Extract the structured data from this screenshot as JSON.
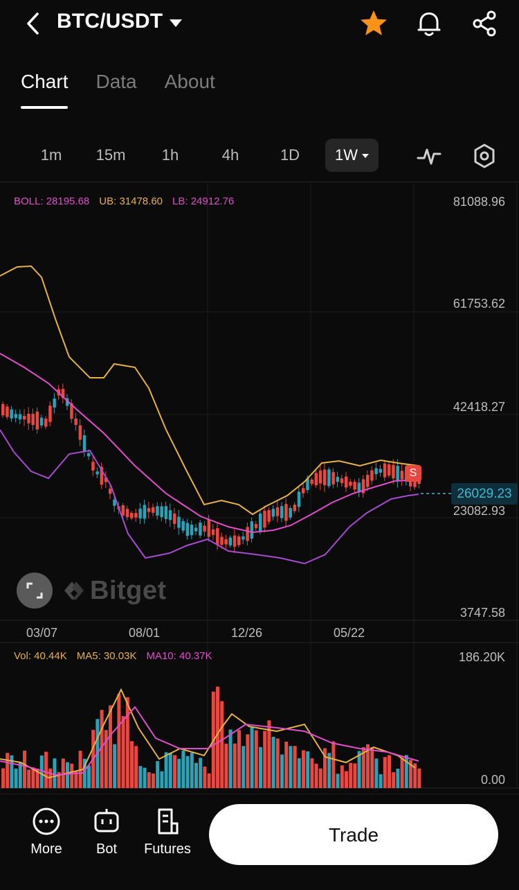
{
  "header": {
    "pair": "BTC/USDT",
    "icons": [
      "back-icon",
      "star-icon",
      "bell-icon",
      "share-icon"
    ],
    "star_color": "#f7931a"
  },
  "tabs": [
    {
      "label": "Chart",
      "active": true
    },
    {
      "label": "Data",
      "active": false
    },
    {
      "label": "About",
      "active": false
    }
  ],
  "timeframes": [
    {
      "label": "1m"
    },
    {
      "label": "15m"
    },
    {
      "label": "1h"
    },
    {
      "label": "4h"
    },
    {
      "label": "1D"
    },
    {
      "label": "1W",
      "selected": true
    }
  ],
  "toolbar_icons": [
    "indicator-icon",
    "settings-icon"
  ],
  "boll": {
    "boll_label": "BOLL: 28195.68",
    "ub_label": "UB: 31478.60",
    "lb_label": "LB: 24912.76"
  },
  "price_axis": [
    "81088.96",
    "61753.62",
    "42418.27",
    "23082.93",
    "3747.58"
  ],
  "current_price": "26029.23",
  "signal_badge": "S",
  "date_axis": [
    "03/07",
    "08/01",
    "12/26",
    "05/22"
  ],
  "volume": {
    "vol_label": "Vol: 40.44K",
    "ma5_label": "MA5: 30.03K",
    "ma10_label": "MA10: 40.37K",
    "axis_max": "186.20K",
    "axis_min": "0.00"
  },
  "watermark": "Bitget",
  "bottom": {
    "more": "More",
    "bot": "Bot",
    "futures": "Futures",
    "trade": "Trade"
  },
  "colors": {
    "up": "#2aa2b8",
    "down": "#e8483f",
    "boll_mid": "#e04fc9",
    "boll_upper": "#e6b245",
    "boll_lower": "#a64bd0"
  }
}
